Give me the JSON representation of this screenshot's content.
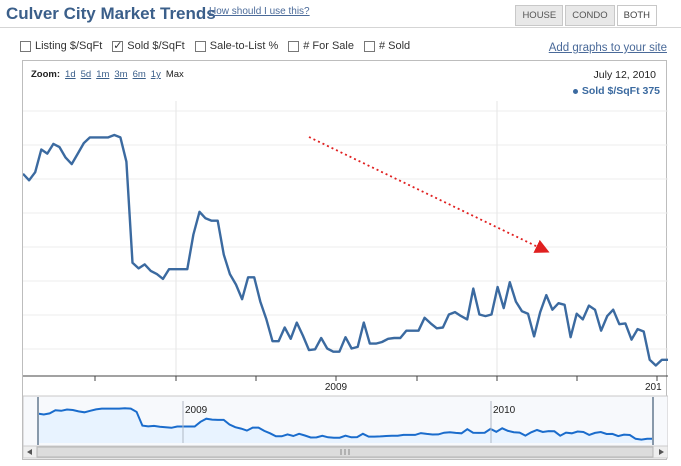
{
  "header": {
    "title": "Culver City Market Trends",
    "help_link": "How should I use this?",
    "property_tabs": [
      {
        "label": "HOUSE",
        "active": false
      },
      {
        "label": "CONDO",
        "active": false
      },
      {
        "label": "BOTH",
        "active": true
      }
    ]
  },
  "metrics": [
    {
      "label": "Listing $/SqFt",
      "checked": false
    },
    {
      "label": "Sold $/SqFt",
      "checked": true
    },
    {
      "label": "Sale-to-List %",
      "checked": false
    },
    {
      "label": "# For Sale",
      "checked": false
    },
    {
      "label": "# Sold",
      "checked": false
    }
  ],
  "add_graphs_link": "Add graphs to your site",
  "zoom": {
    "label": "Zoom:",
    "options": [
      "1d",
      "5d",
      "1m",
      "3m",
      "6m",
      "1y",
      "Max"
    ],
    "selected": "Max"
  },
  "readout": {
    "date": "July 12, 2010",
    "series_label": "Sold $/SqFt 375"
  },
  "colors": {
    "title": "#3b5f8a",
    "series_line": "#3b6aa0",
    "navigator_line": "#1a6ccc",
    "navigator_fill": "#e8f3ff",
    "trend_arrow": "#e02020"
  },
  "chart_data": {
    "type": "line",
    "x_tick_labels": [
      "2009",
      "201"
    ],
    "navigator_tick_labels": [
      "2009",
      "2010"
    ],
    "series": [
      {
        "name": "Sold $/SqFt",
        "values": [
          560,
          552,
          562,
          590,
          585,
          597,
          593,
          580,
          572,
          585,
          598,
          605,
          605,
          605,
          605,
          608,
          605,
          575,
          450,
          443,
          448,
          440,
          436,
          430,
          442,
          442,
          442,
          442,
          485,
          513,
          505,
          502,
          502,
          460,
          436,
          423,
          405,
          432,
          432,
          402,
          380,
          353,
          353,
          370,
          356,
          376,
          360,
          342,
          343,
          357,
          344,
          340,
          340,
          358,
          344,
          346,
          376,
          350,
          350,
          352,
          356,
          357,
          357,
          366,
          366,
          366,
          382,
          375,
          369,
          370,
          386,
          389,
          384,
          380,
          418,
          386,
          384,
          386,
          420,
          394,
          426,
          402,
          390,
          387,
          359,
          389,
          410,
          392,
          400,
          398,
          358,
          387,
          380,
          397,
          392,
          366,
          384,
          392,
          374,
          375,
          355,
          368,
          365,
          330,
          323,
          330,
          330
        ],
        "trend_arrow": {
          "start_index": 47,
          "end_index": 86
        }
      }
    ]
  }
}
